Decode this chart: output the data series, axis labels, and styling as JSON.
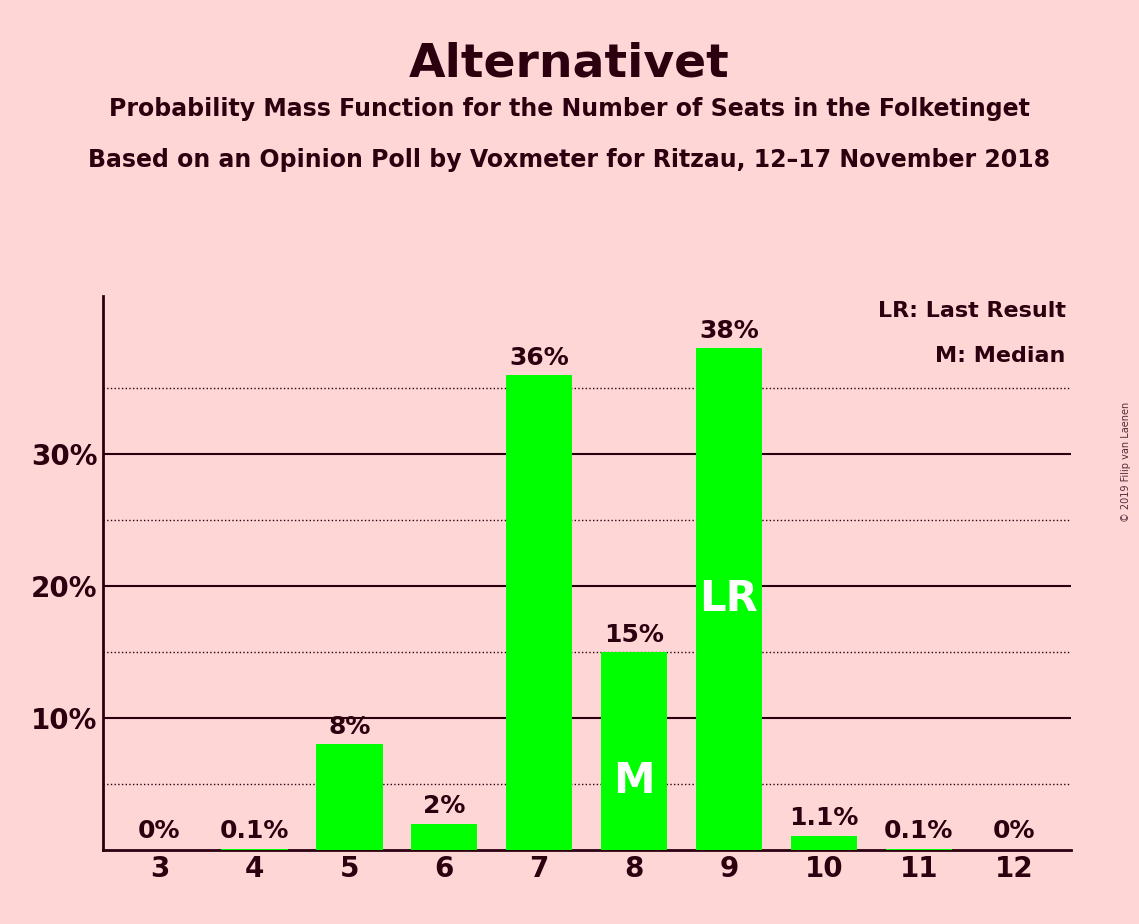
{
  "title": "Alternativet",
  "subtitle1": "Probability Mass Function for the Number of Seats in the Folketinget",
  "subtitle2": "Based on an Opinion Poll by Voxmeter for Ritzau, 12–17 November 2018",
  "watermark": "© 2019 Filip van Laenen",
  "categories": [
    3,
    4,
    5,
    6,
    7,
    8,
    9,
    10,
    11,
    12
  ],
  "values": [
    0.0,
    0.1,
    8.0,
    2.0,
    36.0,
    15.0,
    38.0,
    1.1,
    0.1,
    0.0
  ],
  "bar_labels": [
    "0%",
    "0.1%",
    "8%",
    "2%",
    "36%",
    "15%",
    "38%",
    "1.1%",
    "0.1%",
    "0%"
  ],
  "bar_color": "#00ff00",
  "background_color": "#ffd6d6",
  "text_color": "#2d0010",
  "title_fontsize": 34,
  "subtitle_fontsize": 17,
  "axis_label_fontsize": 20,
  "bar_label_fontsize": 18,
  "ytick_labels": [
    "10%",
    "20%",
    "30%"
  ],
  "ytick_values": [
    10,
    20,
    30
  ],
  "ylim": [
    0,
    42
  ],
  "median_bar": 8,
  "last_result_bar": 9,
  "legend_lr": "LR: Last Result",
  "legend_m": "M: Median",
  "median_label": "M",
  "lr_label": "LR",
  "watermark_fontsize": 7
}
